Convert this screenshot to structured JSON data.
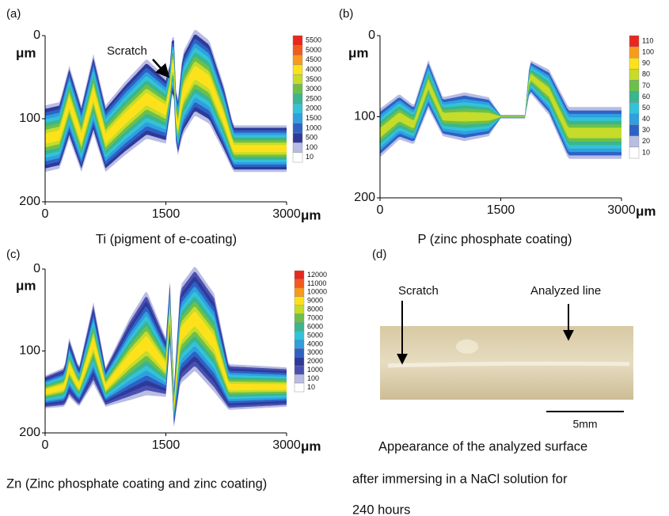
{
  "chart_data": [
    {
      "type": "contour",
      "label": "(a)",
      "title": "Ti (pigment of e-coating)",
      "annotation": "Scratch",
      "xlim": [
        0,
        3000
      ],
      "xticks": [
        0,
        1500,
        3000
      ],
      "ylim": [
        0,
        200
      ],
      "yticks": [
        0,
        100,
        200
      ],
      "x_unit": "μm",
      "y_unit": "μm",
      "levels": [
        5500,
        5000,
        4500,
        4000,
        3500,
        3000,
        2500,
        2000,
        1500,
        1000,
        500,
        100,
        10
      ],
      "colors": [
        "#e8271f",
        "#f25a1e",
        "#f79a1d",
        "#fde11b",
        "#c5dc2b",
        "#6cc04a",
        "#3bb58f",
        "#33c3d8",
        "#2f9fe0",
        "#2d62c5",
        "#2e3a9a",
        "#b9bce3",
        "#ffffff"
      ]
    },
    {
      "type": "contour",
      "label": "(b)",
      "title": "P (zinc phosphate coating)",
      "xlim": [
        0,
        3000
      ],
      "xticks": [
        0,
        1500,
        3000
      ],
      "ylim": [
        0,
        200
      ],
      "yticks": [
        0,
        100,
        200
      ],
      "x_unit": "μm",
      "y_unit": "μm",
      "levels": [
        110,
        100,
        90,
        80,
        70,
        60,
        50,
        40,
        30,
        20,
        10
      ],
      "colors": [
        "#e8271f",
        "#f79a1d",
        "#fde11b",
        "#c5dc2b",
        "#6cc04a",
        "#3bb58f",
        "#33c3d8",
        "#2f9fe0",
        "#2d62c5",
        "#b9bce3",
        "#ffffff"
      ]
    },
    {
      "type": "contour",
      "label": "(c)",
      "title": "Zn (Zinc phosphate coating and zinc coating)",
      "xlim": [
        0,
        3000
      ],
      "xticks": [
        0,
        1500,
        3000
      ],
      "ylim": [
        0,
        200
      ],
      "yticks": [
        0,
        100,
        200
      ],
      "x_unit": "μm",
      "y_unit": "μm",
      "levels": [
        12000,
        11000,
        10000,
        9000,
        8000,
        7000,
        6000,
        5000,
        4000,
        3000,
        2000,
        1000,
        100,
        10
      ],
      "colors": [
        "#e8271f",
        "#f25a1e",
        "#f79a1d",
        "#fde11b",
        "#c5dc2b",
        "#6cc04a",
        "#3bb58f",
        "#33c3d8",
        "#2f9fe0",
        "#2d62c5",
        "#2e3a9a",
        "#4a50b0",
        "#b9bce3",
        "#ffffff"
      ]
    }
  ],
  "panel_d": {
    "label": "(d)",
    "scratch": "Scratch",
    "analyzed_line": "Analyzed line",
    "scale": "5mm",
    "caption": [
      "Appearance of the analyzed surface",
      "after immersing in a NaCl solution for",
      "240 hours"
    ]
  }
}
